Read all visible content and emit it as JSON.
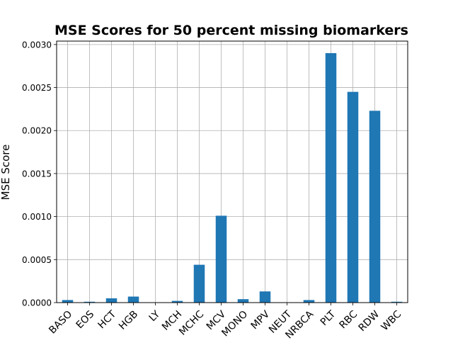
{
  "chart_data": {
    "type": "bar",
    "title": "MSE Scores for 50 percent missing biomarkers",
    "xlabel": "",
    "ylabel": "MSE Score",
    "categories": [
      "BASO",
      "EOS",
      "HCT",
      "HGB",
      "LY",
      "MCH",
      "MCHC",
      "MCV",
      "MONO",
      "MPV",
      "NEUT",
      "NRBCA",
      "PLT",
      "RBC",
      "RDW",
      "WBC"
    ],
    "values": [
      3e-05,
      1e-05,
      5e-05,
      7e-05,
      0.0,
      2e-05,
      0.00044,
      0.00101,
      4e-05,
      0.00013,
      0.0,
      3e-05,
      0.0029,
      0.00245,
      0.00223,
      1e-05
    ],
    "ylim": [
      0,
      0.00304
    ],
    "yticks": [
      "0.0000",
      "0.0005",
      "0.0010",
      "0.0015",
      "0.0020",
      "0.0025",
      "0.0030"
    ],
    "grid": true,
    "bar_color": "#1f77b4",
    "grid_color": "#b0b0b0"
  }
}
